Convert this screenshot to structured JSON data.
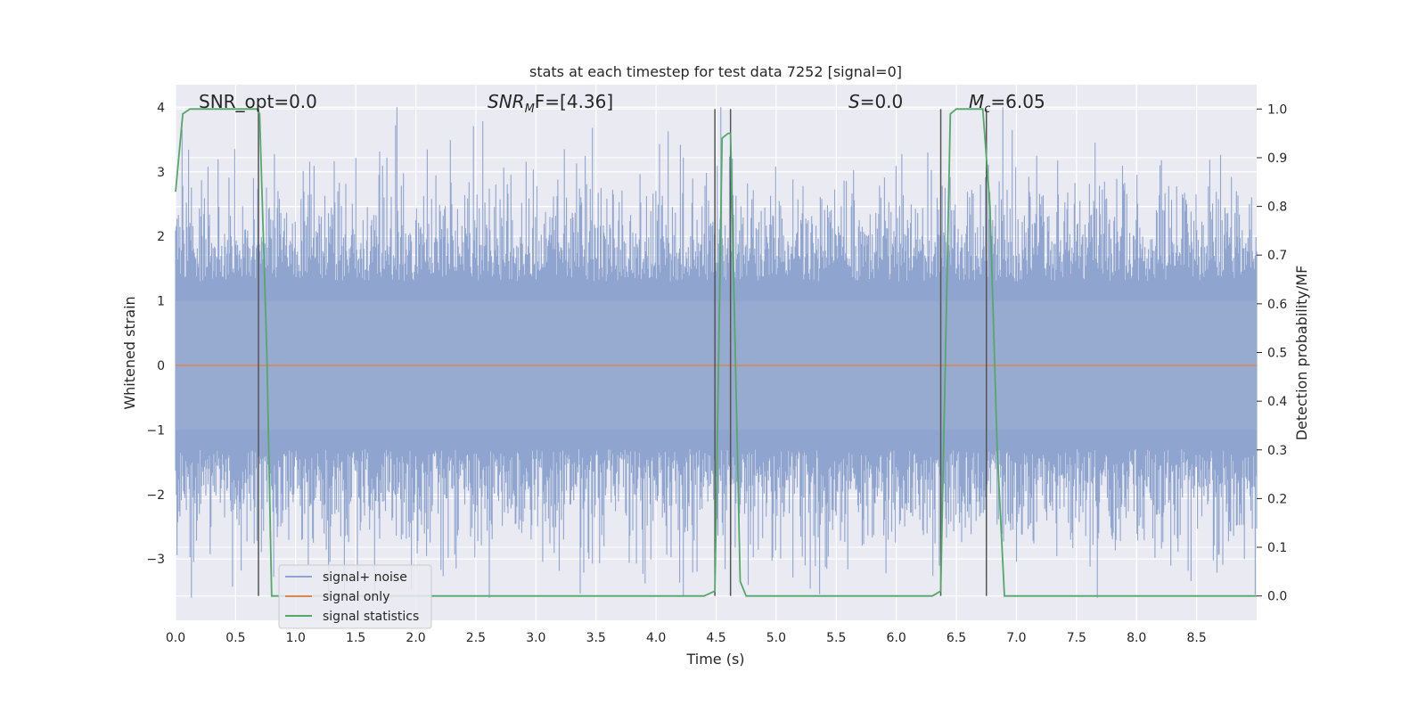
{
  "chart_data": {
    "type": "line",
    "title": "stats at each timestep for test data 7252 [signal=0]",
    "xlabel": "Time (s)",
    "ylabel_left": "Whitened strain",
    "ylabel_right": "Detection probability/MF",
    "xlim": [
      0.0,
      9.0
    ],
    "ylim_left": [
      -3.95,
      4.35
    ],
    "ylim_right": [
      -0.05,
      1.05
    ],
    "x_ticks": [
      "0.0",
      "0.5",
      "1.0",
      "1.5",
      "2.0",
      "2.5",
      "3.0",
      "3.5",
      "4.0",
      "4.5",
      "5.0",
      "5.5",
      "6.0",
      "6.5",
      "7.0",
      "7.5",
      "8.0",
      "8.5"
    ],
    "y_ticks_left": [
      "4",
      "3",
      "2",
      "1",
      "0",
      "−1",
      "−2",
      "−3"
    ],
    "y_ticks_right": [
      "1.0",
      "0.9",
      "0.8",
      "0.7",
      "0.6",
      "0.5",
      "0.4",
      "0.3",
      "0.2",
      "0.1",
      "0.0"
    ],
    "grid": true,
    "annotations": {
      "snr_opt": {
        "label": "SNR_opt=0.0"
      },
      "snr_mf": {
        "prefix": "SNR",
        "sub": "M",
        "suffix": "F=[4.36]"
      },
      "s_stat": {
        "italic": "S",
        "suffix": "=0.0"
      },
      "mc": {
        "italic": "M",
        "sub": "c",
        "suffix": "=6.05"
      }
    },
    "legend": {
      "position": "lower-left",
      "entries": [
        "signal+ noise",
        "signal only",
        "signal statistics"
      ]
    },
    "series": [
      {
        "name": "signal+ noise",
        "color": "#8fa5cf",
        "description_axis": "left",
        "amplitude_range": [
          -3.6,
          4.0
        ]
      },
      {
        "name": "signal only",
        "color": "#dd8452",
        "axis": "left",
        "x": [
          0.0,
          9.0
        ],
        "y": [
          0.0,
          0.0
        ]
      },
      {
        "name": "signal statistics",
        "color": "#55a868",
        "axis": "right",
        "x": [
          0.0,
          0.06,
          0.12,
          0.2,
          0.3,
          0.4,
          0.5,
          0.6,
          0.68,
          0.7,
          0.76,
          0.8,
          0.9,
          1.0,
          2.0,
          3.0,
          4.0,
          4.4,
          4.49,
          4.55,
          4.6,
          4.62,
          4.7,
          4.75,
          4.8,
          5.0,
          6.0,
          6.3,
          6.37,
          6.45,
          6.5,
          6.6,
          6.72,
          6.78,
          6.84,
          6.9,
          7.0,
          8.0,
          9.0
        ],
        "y": [
          0.83,
          0.99,
          1.0,
          1.0,
          1.0,
          1.0,
          1.0,
          1.0,
          1.0,
          0.99,
          0.5,
          0.0,
          0.0,
          0.0,
          0.0,
          0.0,
          0.0,
          0.0,
          0.01,
          0.94,
          0.95,
          0.95,
          0.03,
          0.0,
          0.0,
          0.0,
          0.0,
          0.0,
          0.01,
          0.99,
          1.0,
          1.0,
          1.0,
          0.8,
          0.3,
          0.0,
          0.0,
          0.0,
          0.0
        ]
      },
      {
        "name": "vertical markers",
        "color": "#555555",
        "x": [
          0.69,
          4.49,
          4.62,
          6.37,
          6.75
        ]
      }
    ]
  }
}
